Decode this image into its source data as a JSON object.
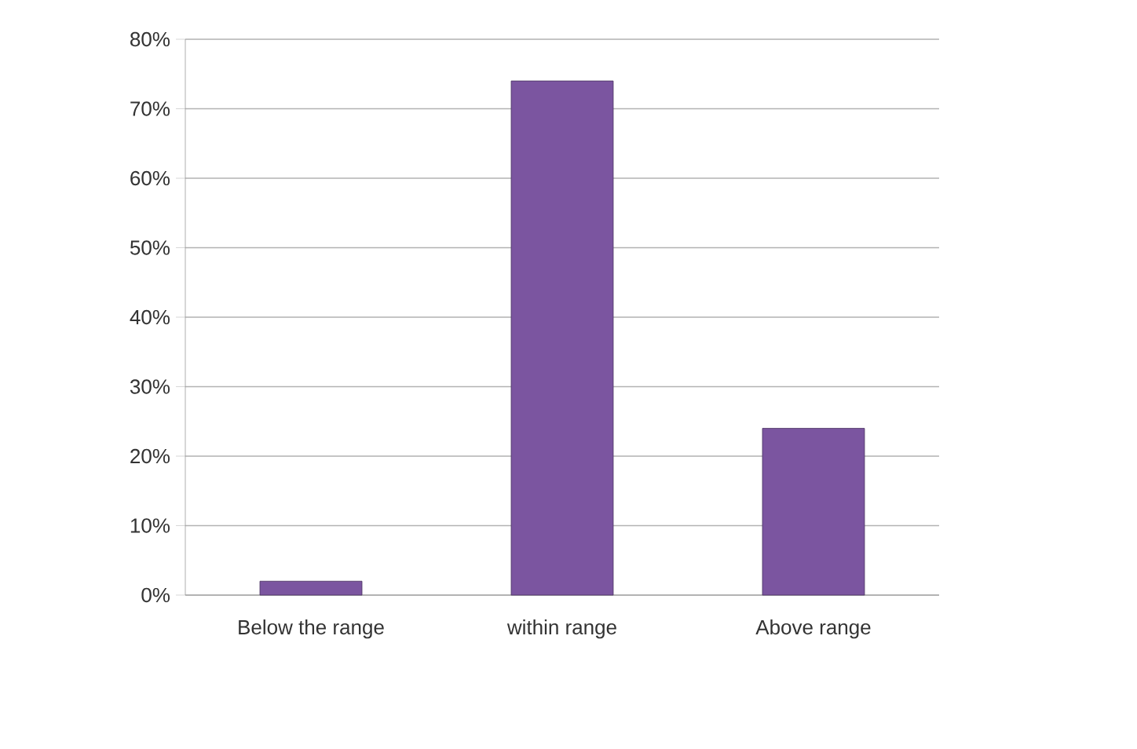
{
  "chart_data": {
    "type": "bar",
    "categories": [
      "Below the range",
      "within  range",
      "Above range"
    ],
    "values": [
      2,
      74,
      24
    ],
    "color": "#7b55a0",
    "ylim": [
      0,
      80
    ],
    "yticks": [
      {
        "value": 0,
        "label": "0%"
      },
      {
        "value": 10,
        "label": "10%"
      },
      {
        "value": 20,
        "label": "20%"
      },
      {
        "value": 30,
        "label": "30%"
      },
      {
        "value": 40,
        "label": "40%"
      },
      {
        "value": 50,
        "label": "50%"
      },
      {
        "value": 60,
        "label": "60%"
      },
      {
        "value": 70,
        "label": "70%"
      },
      {
        "value": 80,
        "label": "80%"
      }
    ],
    "grid": "y"
  }
}
